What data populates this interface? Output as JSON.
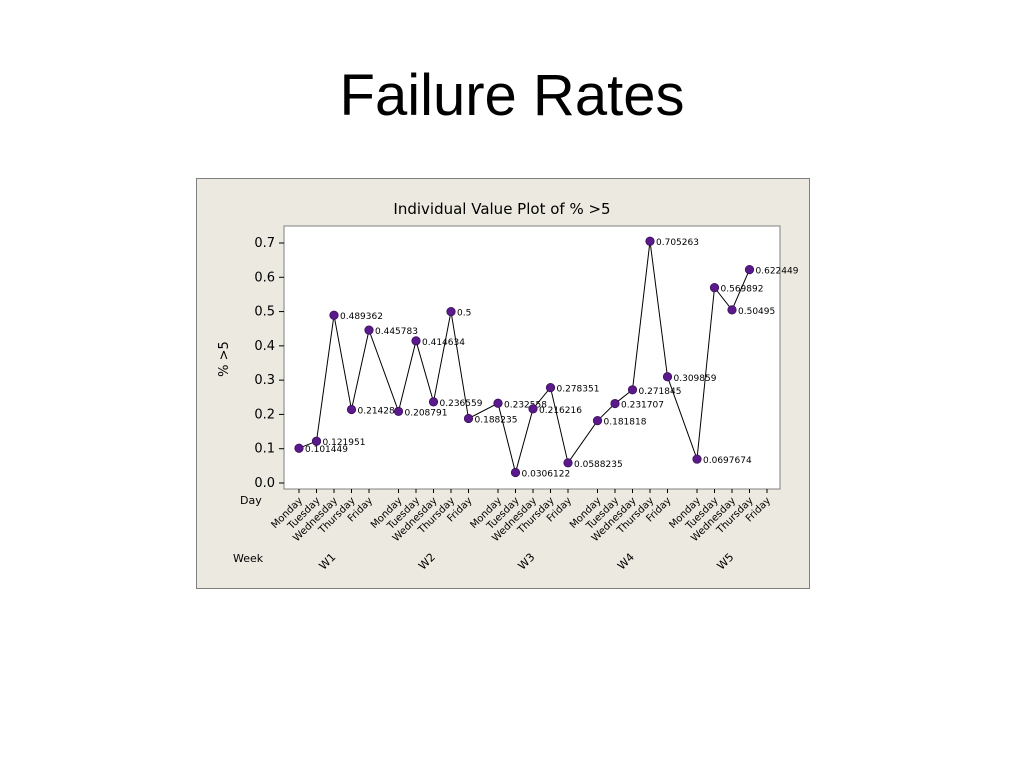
{
  "slide": {
    "title": "Failure Rates"
  },
  "colors": {
    "panel_bg": "#ECE9E0",
    "plot_bg": "#ffffff",
    "point": "#5B1A8C",
    "line": "#000000"
  },
  "chart_data": {
    "type": "line",
    "title": "Individual Value Plot of % >5",
    "ylabel": "% >5",
    "ylim": [
      0.0,
      0.7
    ],
    "yticks": [
      "0.0",
      "0.1",
      "0.2",
      "0.3",
      "0.4",
      "0.5",
      "0.6",
      "0.7"
    ],
    "grid": false,
    "day_row_label": "Day",
    "week_row_label": "Week",
    "days": [
      "Monday",
      "Tuesday",
      "Wednesday",
      "Thursday",
      "Friday"
    ],
    "weeks": [
      "W1",
      "W2",
      "W3",
      "W4",
      "W5"
    ],
    "values": [
      [
        0.101449,
        0.121951,
        0.489362,
        0.214286,
        0.445783
      ],
      [
        0.208791,
        0.414634,
        0.236559,
        0.5,
        0.188235
      ],
      [
        0.232558,
        0.0306122,
        0.216216,
        0.278351,
        0.0588235
      ],
      [
        0.181818,
        0.231707,
        0.271845,
        0.705263,
        0.309859
      ],
      [
        0.0697674,
        0.569892,
        0.50495,
        0.622449,
        null
      ]
    ],
    "value_labels": [
      [
        "0.101449",
        "0.121951",
        "0.489362",
        "0.214286",
        "0.445783"
      ],
      [
        "0.208791",
        "0.414634",
        "0.236559",
        "0.5",
        "0.188235"
      ],
      [
        "0.232558",
        "0.0306122",
        "0.216216",
        "0.278351",
        "0.0588235"
      ],
      [
        "0.181818",
        "0.231707",
        "0.271845",
        "0.705263",
        "0.309859"
      ],
      [
        "0.0697674",
        "0.569892",
        "0.50495",
        "0.622449",
        ""
      ]
    ]
  }
}
